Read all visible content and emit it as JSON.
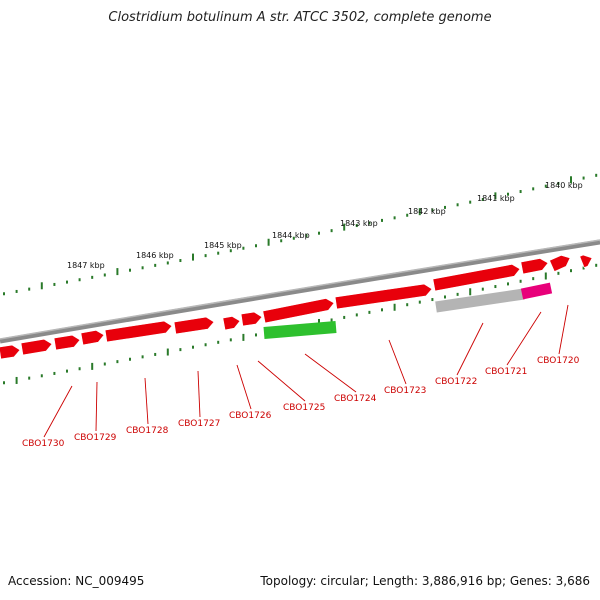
{
  "title": "Clostridium botulinum A str. ATCC 3502, complete genome",
  "footer": {
    "accession": "Accession: NC_009495",
    "topology_line": "Topology: circular; Length: 3,886,916 bp; Genes: 3,686"
  },
  "colors": {
    "backbone": "#8a8a8a",
    "gene_forward": "#e8000b",
    "gene_highlight_green": "#2ec02e",
    "gene_grey": "#b4b4b4",
    "gene_pink": "#e8007a",
    "tick": "#2a7a2a",
    "label": "#cc0000"
  },
  "scale_labels": [
    "1847 kbp",
    "1846 kbp",
    "1845 kbp",
    "1844 kbp",
    "1843 kbp",
    "1842 kbp",
    "1841 kbp",
    "1840 kbp"
  ],
  "genes": [
    {
      "label": "CBO1730",
      "color": "gene_forward"
    },
    {
      "label": "CBO1729",
      "color": "gene_forward"
    },
    {
      "label": "CBO1728",
      "color": "gene_forward"
    },
    {
      "label": "CBO1727",
      "color": "gene_forward"
    },
    {
      "label": "CBO1726",
      "color": "gene_forward"
    },
    {
      "label": "CBO1725",
      "color": "gene_forward"
    },
    {
      "label": "CBO1724",
      "color": "gene_highlight_green"
    },
    {
      "label": "CBO1723",
      "color": "gene_forward"
    },
    {
      "label": "CBO1722",
      "color": "gene_grey"
    },
    {
      "label": "CBO1721",
      "color": "gene_pink"
    },
    {
      "label": "CBO1720",
      "color": "gene_forward"
    }
  ]
}
